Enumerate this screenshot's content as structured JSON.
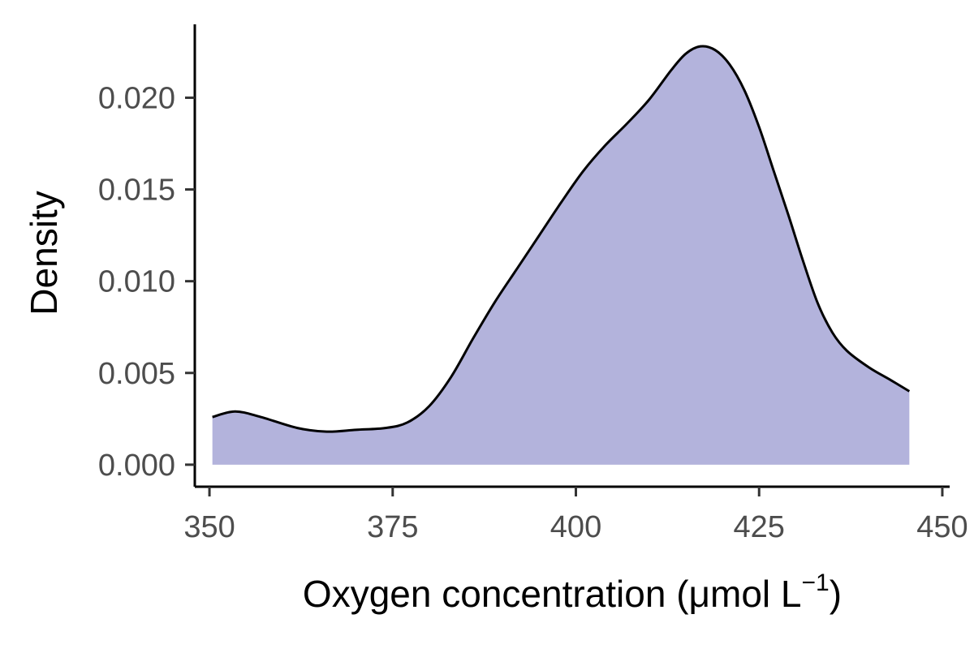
{
  "chart_data": {
    "type": "area",
    "title": "",
    "xlabel_main": "Oxygen concentration (",
    "xlabel_unit": "μmol L",
    "xlabel_sup": "−1",
    "xlabel_close": ")",
    "ylabel": "Density",
    "xlim": [
      348,
      451
    ],
    "ylim": [
      -0.0012,
      0.024
    ],
    "x_ticks": [
      350,
      375,
      400,
      425,
      450
    ],
    "x_tick_labels": [
      "350",
      "375",
      "400",
      "425",
      "450"
    ],
    "y_ticks": [
      0.0,
      0.005,
      0.01,
      0.015,
      0.02
    ],
    "y_tick_labels": [
      "0.000",
      "0.005",
      "0.010",
      "0.015",
      "0.020"
    ],
    "grid": false,
    "legend": "none",
    "fill_color": "#b3b3dc",
    "line_color": "#000000",
    "series": [
      {
        "x": [
          350.4,
          353.5,
          357,
          362,
          366,
          370,
          374,
          377,
          380,
          383,
          386,
          389,
          392,
          395,
          398,
          401,
          404,
          407,
          410,
          413,
          415,
          417,
          419,
          421,
          423,
          425,
          427,
          429,
          431,
          433,
          435,
          437,
          440,
          443,
          445.5
        ],
        "y": [
          0.0026,
          0.0029,
          0.0026,
          0.002,
          0.0018,
          0.0019,
          0.002,
          0.0023,
          0.0032,
          0.0048,
          0.0069,
          0.0089,
          0.0107,
          0.0125,
          0.0143,
          0.016,
          0.0174,
          0.0186,
          0.0199,
          0.0215,
          0.0224,
          0.0228,
          0.0226,
          0.0218,
          0.0204,
          0.0184,
          0.016,
          0.0136,
          0.0111,
          0.0088,
          0.0072,
          0.0062,
          0.0053,
          0.0046,
          0.004
        ]
      }
    ]
  }
}
